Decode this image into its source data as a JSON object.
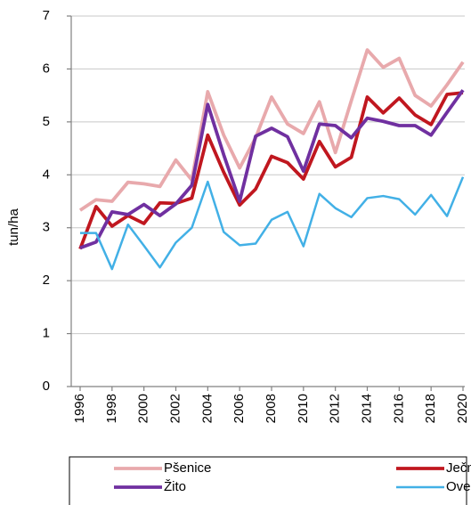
{
  "chart_data": {
    "type": "line",
    "y_label": "tun/ha",
    "x": [
      1996,
      1997,
      1998,
      1999,
      2000,
      2001,
      2002,
      2003,
      2004,
      2005,
      2006,
      2007,
      2008,
      2009,
      2010,
      2011,
      2012,
      2013,
      2014,
      2015,
      2016,
      2017,
      2018,
      2019,
      2020
    ],
    "xlim": [
      1996,
      2020
    ],
    "xticks": [
      1996,
      1998,
      2000,
      2002,
      2004,
      2006,
      2008,
      2010,
      2012,
      2014,
      2016,
      2018,
      2020
    ],
    "ylim": [
      0,
      7
    ],
    "yticks": [
      0,
      1,
      2,
      3,
      4,
      5,
      6,
      7
    ],
    "grid": true,
    "legend": "bottom",
    "series": [
      {
        "name": "Pšenice",
        "color": "#e8a9ac",
        "values": [
          3.33,
          3.53,
          3.5,
          3.86,
          3.83,
          3.78,
          4.28,
          3.9,
          5.57,
          4.75,
          4.13,
          4.7,
          5.47,
          4.96,
          4.78,
          5.38,
          4.42,
          5.4,
          6.36,
          6.03,
          6.2,
          5.5,
          5.3,
          5.7,
          6.13
        ]
      },
      {
        "name": "Ječmen",
        "color": "#c0171f",
        "values": [
          2.6,
          3.4,
          3.03,
          3.23,
          3.08,
          3.47,
          3.46,
          3.56,
          4.75,
          4.05,
          3.43,
          3.73,
          4.35,
          4.23,
          3.92,
          4.63,
          4.15,
          4.33,
          5.47,
          5.17,
          5.45,
          5.13,
          4.95,
          5.52,
          5.55
        ]
      },
      {
        "name": "Žito",
        "color": "#7030a0",
        "values": [
          2.62,
          2.73,
          3.3,
          3.25,
          3.44,
          3.23,
          3.45,
          3.8,
          5.33,
          4.38,
          3.5,
          4.73,
          4.88,
          4.72,
          4.07,
          4.96,
          4.93,
          4.7,
          5.07,
          5.01,
          4.93,
          4.93,
          4.75,
          5.18,
          5.6
        ]
      },
      {
        "name": "Oves",
        "color": "#42b0e6",
        "values": [
          2.9,
          2.9,
          2.22,
          3.06,
          2.66,
          2.25,
          2.72,
          3.0,
          3.87,
          2.92,
          2.67,
          2.7,
          3.15,
          3.3,
          2.65,
          3.64,
          3.37,
          3.2,
          3.56,
          3.6,
          3.54,
          3.25,
          3.62,
          3.22,
          3.96
        ]
      }
    ]
  }
}
